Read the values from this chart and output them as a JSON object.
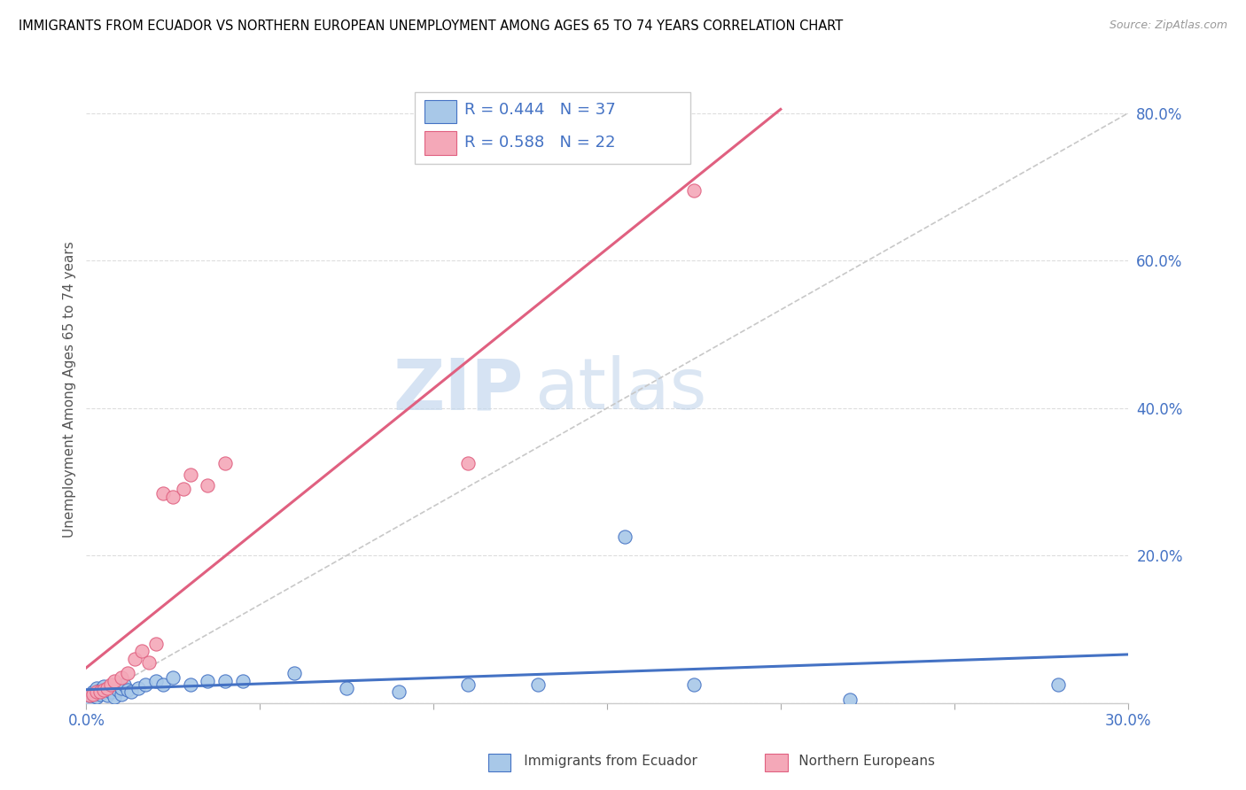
{
  "title": "IMMIGRANTS FROM ECUADOR VS NORTHERN EUROPEAN UNEMPLOYMENT AMONG AGES 65 TO 74 YEARS CORRELATION CHART",
  "source": "Source: ZipAtlas.com",
  "ylabel": "Unemployment Among Ages 65 to 74 years",
  "xlim": [
    0.0,
    0.3
  ],
  "ylim": [
    0.0,
    0.85
  ],
  "xticks": [
    0.0,
    0.05,
    0.1,
    0.15,
    0.2,
    0.25,
    0.3
  ],
  "xticklabels": [
    "0.0%",
    "",
    "",
    "",
    "",
    "",
    "30.0%"
  ],
  "yticks": [
    0.0,
    0.2,
    0.4,
    0.6,
    0.8
  ],
  "yticklabels": [
    "",
    "20.0%",
    "40.0%",
    "60.0%",
    "80.0%"
  ],
  "watermark_zip": "ZIP",
  "watermark_atlas": "atlas",
  "color_ecuador": "#a8c8e8",
  "color_northern": "#f4a8b8",
  "color_trendline_ecuador": "#4472c4",
  "color_trendline_northern": "#e06080",
  "color_dashed_line": "#c8c8c8",
  "color_tick_label": "#4472c4",
  "ecuador_x": [
    0.001,
    0.001,
    0.002,
    0.002,
    0.003,
    0.003,
    0.004,
    0.004,
    0.005,
    0.005,
    0.006,
    0.007,
    0.008,
    0.009,
    0.01,
    0.01,
    0.011,
    0.012,
    0.013,
    0.015,
    0.017,
    0.02,
    0.022,
    0.025,
    0.03,
    0.035,
    0.04,
    0.045,
    0.06,
    0.075,
    0.09,
    0.11,
    0.13,
    0.155,
    0.175,
    0.22,
    0.28
  ],
  "ecuador_y": [
    0.005,
    0.01,
    0.01,
    0.015,
    0.008,
    0.02,
    0.012,
    0.018,
    0.015,
    0.022,
    0.01,
    0.015,
    0.008,
    0.018,
    0.012,
    0.02,
    0.025,
    0.018,
    0.015,
    0.02,
    0.025,
    0.03,
    0.025,
    0.035,
    0.025,
    0.03,
    0.03,
    0.03,
    0.04,
    0.02,
    0.015,
    0.025,
    0.025,
    0.225,
    0.025,
    0.005,
    0.025
  ],
  "northern_x": [
    0.001,
    0.002,
    0.003,
    0.004,
    0.005,
    0.006,
    0.007,
    0.008,
    0.01,
    0.012,
    0.014,
    0.016,
    0.018,
    0.02,
    0.022,
    0.025,
    0.028,
    0.03,
    0.035,
    0.04,
    0.11,
    0.175
  ],
  "northern_y": [
    0.01,
    0.012,
    0.015,
    0.015,
    0.018,
    0.02,
    0.025,
    0.03,
    0.035,
    0.04,
    0.06,
    0.07,
    0.055,
    0.08,
    0.285,
    0.28,
    0.29,
    0.31,
    0.295,
    0.325,
    0.325,
    0.695
  ]
}
